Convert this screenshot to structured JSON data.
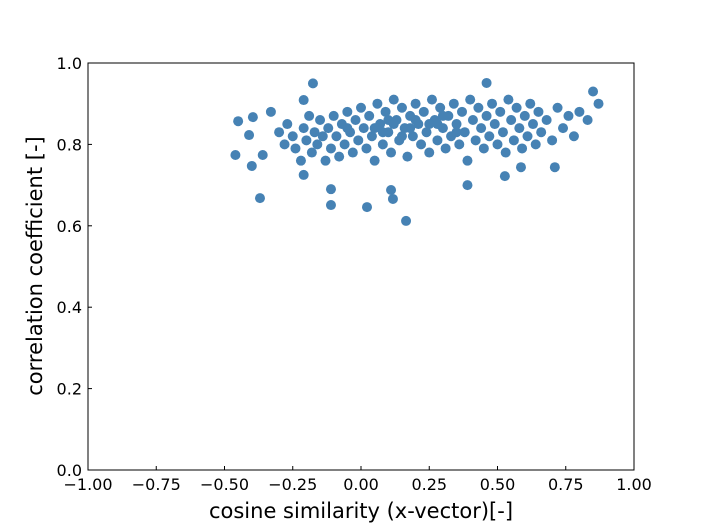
{
  "chart_data": {
    "type": "scatter",
    "xlabel": "cosine similarity (x-vector)[-]",
    "ylabel": "correlation coefficient [-]",
    "color": "#4682b4",
    "xlim": [
      -1,
      1
    ],
    "ylim": [
      0,
      1
    ],
    "xticks": [
      {
        "value": -1,
        "label": "−1.00"
      },
      {
        "value": -0.75,
        "label": "−0.75"
      },
      {
        "value": -0.5,
        "label": "−0.50"
      },
      {
        "value": -0.25,
        "label": "−0.25"
      },
      {
        "value": 0,
        "label": "0.00"
      },
      {
        "value": 0.25,
        "label": "0.25"
      },
      {
        "value": 0.5,
        "label": "0.50"
      },
      {
        "value": 0.75,
        "label": "0.75"
      },
      {
        "value": 1,
        "label": "1.00"
      }
    ],
    "yticks": [
      {
        "value": 0,
        "label": "0.0"
      },
      0.2,
      0.4,
      0.6,
      0.8,
      {
        "value": 1,
        "label": "1.0"
      }
    ],
    "x": [
      0.165,
      -0.37,
      0.022,
      -0.11,
      0.117,
      -0.11,
      0.11,
      0.39,
      0.527,
      0.71,
      -0.176,
      0.46,
      -0.46,
      -0.4,
      -0.45,
      -0.396,
      -0.33,
      0.85,
      0.87,
      -0.21,
      -0.21,
      -0.36,
      -0.41,
      0.586,
      -0.3,
      -0.28,
      -0.27,
      -0.25,
      -0.24,
      -0.22,
      -0.21,
      -0.2,
      -0.19,
      -0.18,
      -0.17,
      -0.16,
      -0.15,
      -0.14,
      -0.13,
      -0.12,
      -0.11,
      -0.1,
      -0.09,
      -0.08,
      -0.07,
      -0.06,
      -0.05,
      -0.04,
      -0.03,
      -0.02,
      -0.01,
      0.0,
      0.01,
      0.02,
      0.03,
      0.04,
      0.05,
      0.06,
      0.07,
      0.08,
      0.09,
      0.1,
      0.11,
      0.12,
      0.13,
      0.14,
      0.15,
      0.16,
      0.17,
      0.18,
      0.19,
      0.2,
      0.21,
      0.22,
      0.23,
      0.24,
      0.25,
      0.26,
      0.27,
      0.28,
      0.29,
      0.3,
      0.31,
      0.32,
      0.33,
      0.34,
      0.35,
      0.36,
      0.37,
      0.38,
      0.39,
      0.4,
      0.41,
      0.42,
      0.43,
      0.44,
      0.45,
      0.46,
      0.47,
      0.48,
      0.49,
      0.5,
      0.51,
      0.52,
      0.53,
      0.54,
      0.55,
      0.56,
      0.57,
      0.58,
      0.59,
      0.6,
      0.61,
      0.62,
      0.63,
      0.64,
      0.65,
      0.66,
      0.68,
      0.7,
      0.72,
      0.74,
      0.76,
      0.78,
      0.8,
      0.83,
      0.05,
      0.1,
      0.15,
      0.2,
      0.25,
      0.3,
      0.35,
      0.08,
      0.18,
      0.28,
      -0.05,
      0.12
    ],
    "values": [
      0.612,
      0.668,
      0.646,
      0.651,
      0.666,
      0.69,
      0.688,
      0.7,
      0.722,
      0.744,
      0.95,
      0.951,
      0.774,
      0.747,
      0.857,
      0.867,
      0.88,
      0.93,
      0.9,
      0.909,
      0.725,
      0.774,
      0.823,
      0.744,
      0.83,
      0.8,
      0.85,
      0.82,
      0.79,
      0.76,
      0.84,
      0.81,
      0.87,
      0.78,
      0.83,
      0.8,
      0.86,
      0.82,
      0.76,
      0.84,
      0.79,
      0.87,
      0.82,
      0.77,
      0.85,
      0.8,
      0.88,
      0.83,
      0.78,
      0.86,
      0.81,
      0.89,
      0.84,
      0.79,
      0.87,
      0.82,
      0.76,
      0.9,
      0.85,
      0.8,
      0.88,
      0.83,
      0.78,
      0.91,
      0.86,
      0.81,
      0.89,
      0.84,
      0.77,
      0.87,
      0.82,
      0.9,
      0.85,
      0.8,
      0.88,
      0.83,
      0.78,
      0.91,
      0.86,
      0.81,
      0.89,
      0.84,
      0.79,
      0.87,
      0.82,
      0.9,
      0.85,
      0.8,
      0.88,
      0.83,
      0.76,
      0.91,
      0.86,
      0.81,
      0.89,
      0.84,
      0.79,
      0.87,
      0.82,
      0.9,
      0.85,
      0.8,
      0.88,
      0.83,
      0.78,
      0.91,
      0.86,
      0.81,
      0.89,
      0.84,
      0.79,
      0.87,
      0.82,
      0.9,
      0.85,
      0.8,
      0.88,
      0.83,
      0.86,
      0.81,
      0.89,
      0.84,
      0.87,
      0.82,
      0.88,
      0.86,
      0.84,
      0.86,
      0.82,
      0.86,
      0.85,
      0.87,
      0.83,
      0.83,
      0.84,
      0.85,
      0.84,
      0.85
    ]
  }
}
